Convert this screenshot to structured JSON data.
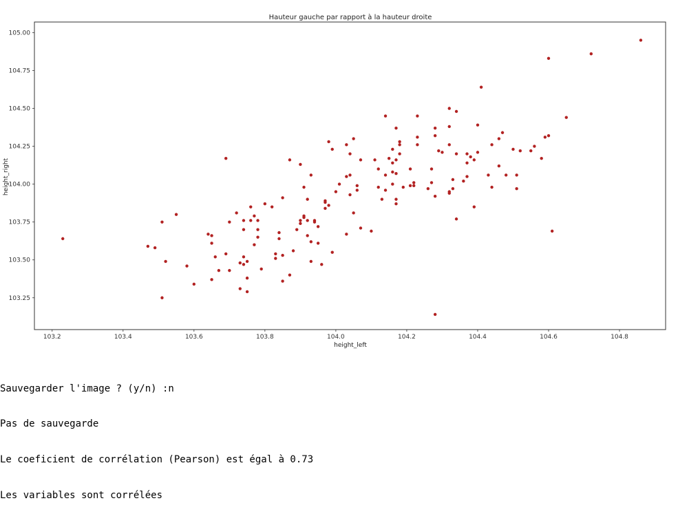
{
  "chart_data": {
    "type": "scatter",
    "title": "Hauteur gauche par rapport à la hauteur droite",
    "xlabel": "height_left",
    "ylabel": "height_right",
    "xlim": [
      103.15,
      104.93
    ],
    "ylim": [
      103.04,
      105.07
    ],
    "xticks": [
      "103.2",
      "103.4",
      "103.6",
      "103.8",
      "104.0",
      "104.2",
      "104.4",
      "104.6",
      "104.8"
    ],
    "yticks": [
      "103.25",
      "103.50",
      "103.75",
      "104.00",
      "104.25",
      "104.50",
      "104.75",
      "105.00"
    ],
    "grid": false,
    "marker_color": "#b22222",
    "points": [
      [
        103.23,
        103.64
      ],
      [
        103.47,
        103.59
      ],
      [
        103.49,
        103.58
      ],
      [
        103.51,
        103.75
      ],
      [
        103.52,
        103.49
      ],
      [
        103.51,
        103.25
      ],
      [
        103.55,
        103.8
      ],
      [
        103.58,
        103.46
      ],
      [
        103.6,
        103.34
      ],
      [
        103.64,
        103.67
      ],
      [
        103.65,
        103.66
      ],
      [
        103.65,
        103.61
      ],
      [
        103.66,
        103.52
      ],
      [
        103.65,
        103.37
      ],
      [
        103.67,
        103.43
      ],
      [
        103.69,
        103.54
      ],
      [
        103.69,
        104.17
      ],
      [
        103.7,
        103.75
      ],
      [
        103.7,
        103.43
      ],
      [
        103.72,
        103.81
      ],
      [
        103.73,
        103.48
      ],
      [
        103.73,
        103.31
      ],
      [
        103.74,
        103.76
      ],
      [
        103.74,
        103.7
      ],
      [
        103.74,
        103.52
      ],
      [
        103.74,
        103.47
      ],
      [
        103.75,
        103.49
      ],
      [
        103.75,
        103.38
      ],
      [
        103.75,
        103.29
      ],
      [
        103.76,
        103.85
      ],
      [
        103.76,
        103.76
      ],
      [
        103.77,
        103.79
      ],
      [
        103.77,
        103.6
      ],
      [
        103.78,
        103.76
      ],
      [
        103.78,
        103.7
      ],
      [
        103.78,
        103.65
      ],
      [
        103.79,
        103.44
      ],
      [
        103.8,
        103.87
      ],
      [
        103.82,
        103.85
      ],
      [
        103.83,
        103.54
      ],
      [
        103.83,
        103.51
      ],
      [
        103.84,
        103.68
      ],
      [
        103.84,
        103.64
      ],
      [
        103.85,
        103.91
      ],
      [
        103.85,
        103.53
      ],
      [
        103.85,
        103.36
      ],
      [
        103.87,
        104.16
      ],
      [
        103.87,
        103.4
      ],
      [
        103.88,
        103.56
      ],
      [
        103.89,
        103.7
      ],
      [
        103.9,
        104.13
      ],
      [
        103.9,
        103.76
      ],
      [
        103.9,
        103.74
      ],
      [
        103.91,
        103.98
      ],
      [
        103.91,
        103.79
      ],
      [
        103.91,
        103.78
      ],
      [
        103.92,
        103.9
      ],
      [
        103.92,
        103.76
      ],
      [
        103.92,
        103.66
      ],
      [
        103.93,
        104.06
      ],
      [
        103.93,
        103.62
      ],
      [
        103.93,
        103.49
      ],
      [
        103.94,
        103.76
      ],
      [
        103.94,
        103.75
      ],
      [
        103.95,
        103.72
      ],
      [
        103.95,
        103.61
      ],
      [
        103.96,
        103.47
      ],
      [
        103.97,
        103.89
      ],
      [
        103.97,
        103.88
      ],
      [
        103.97,
        103.84
      ],
      [
        103.98,
        104.28
      ],
      [
        103.98,
        103.86
      ],
      [
        103.99,
        104.23
      ],
      [
        103.99,
        103.55
      ],
      [
        104.0,
        103.95
      ],
      [
        104.01,
        104.0
      ],
      [
        104.03,
        104.26
      ],
      [
        104.03,
        104.05
      ],
      [
        104.03,
        103.67
      ],
      [
        104.04,
        104.2
      ],
      [
        104.04,
        104.06
      ],
      [
        104.04,
        103.93
      ],
      [
        104.05,
        104.3
      ],
      [
        104.05,
        103.81
      ],
      [
        104.06,
        103.99
      ],
      [
        104.06,
        103.96
      ],
      [
        104.07,
        104.16
      ],
      [
        104.07,
        103.71
      ],
      [
        104.1,
        103.69
      ],
      [
        104.11,
        104.16
      ],
      [
        104.12,
        104.1
      ],
      [
        104.12,
        103.98
      ],
      [
        104.13,
        103.9
      ],
      [
        104.14,
        104.45
      ],
      [
        104.14,
        104.06
      ],
      [
        104.14,
        103.96
      ],
      [
        104.15,
        104.17
      ],
      [
        104.16,
        104.23
      ],
      [
        104.16,
        104.14
      ],
      [
        104.16,
        104.08
      ],
      [
        104.16,
        104.0
      ],
      [
        104.17,
        104.37
      ],
      [
        104.17,
        104.16
      ],
      [
        104.17,
        104.07
      ],
      [
        104.17,
        103.9
      ],
      [
        104.17,
        103.87
      ],
      [
        104.18,
        104.28
      ],
      [
        104.18,
        104.26
      ],
      [
        104.18,
        104.2
      ],
      [
        104.19,
        103.98
      ],
      [
        104.21,
        104.1
      ],
      [
        104.21,
        103.99
      ],
      [
        104.22,
        104.01
      ],
      [
        104.22,
        103.99
      ],
      [
        104.23,
        104.45
      ],
      [
        104.23,
        104.31
      ],
      [
        104.23,
        104.26
      ],
      [
        104.26,
        103.97
      ],
      [
        104.27,
        104.1
      ],
      [
        104.27,
        104.01
      ],
      [
        104.28,
        104.37
      ],
      [
        104.28,
        104.32
      ],
      [
        104.28,
        103.92
      ],
      [
        104.28,
        103.14
      ],
      [
        104.29,
        104.22
      ],
      [
        104.3,
        104.21
      ],
      [
        104.32,
        104.5
      ],
      [
        104.32,
        104.38
      ],
      [
        104.32,
        104.26
      ],
      [
        104.32,
        103.95
      ],
      [
        104.32,
        103.94
      ],
      [
        104.33,
        104.03
      ],
      [
        104.33,
        103.97
      ],
      [
        104.34,
        104.48
      ],
      [
        104.34,
        104.2
      ],
      [
        104.34,
        103.77
      ],
      [
        104.36,
        104.02
      ],
      [
        104.37,
        104.2
      ],
      [
        104.37,
        104.14
      ],
      [
        104.37,
        104.05
      ],
      [
        104.38,
        104.18
      ],
      [
        104.39,
        104.16
      ],
      [
        104.39,
        103.85
      ],
      [
        104.4,
        104.39
      ],
      [
        104.4,
        104.21
      ],
      [
        104.41,
        104.64
      ],
      [
        104.43,
        104.06
      ],
      [
        104.44,
        104.26
      ],
      [
        104.44,
        103.98
      ],
      [
        104.46,
        104.3
      ],
      [
        104.46,
        104.12
      ],
      [
        104.47,
        104.34
      ],
      [
        104.48,
        104.06
      ],
      [
        104.5,
        104.23
      ],
      [
        104.51,
        104.06
      ],
      [
        104.51,
        103.97
      ],
      [
        104.52,
        104.22
      ],
      [
        104.55,
        104.22
      ],
      [
        104.56,
        104.25
      ],
      [
        104.58,
        104.17
      ],
      [
        104.59,
        104.31
      ],
      [
        104.6,
        104.83
      ],
      [
        104.6,
        104.32
      ],
      [
        104.61,
        103.69
      ],
      [
        104.65,
        104.44
      ],
      [
        104.72,
        104.86
      ],
      [
        104.86,
        104.95
      ]
    ]
  },
  "console": {
    "lines": [
      "Sauvegarder l'image ? (y/n) :n",
      "Pas de sauvegarde",
      "Le coeficient de corrélation (Pearson) est égal à 0.73",
      "Les variables sont corrélées"
    ]
  }
}
